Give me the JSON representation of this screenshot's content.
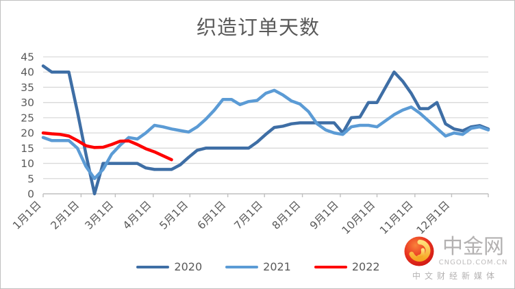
{
  "title": "织造订单天数",
  "chart_data": {
    "type": "line",
    "title": "织造订单天数",
    "grid": "horizontal",
    "legend_position": "bottom",
    "x_unit": "weekly points, Jan 1 through Dec 31",
    "x_tick_labels": [
      "1月1日",
      "2月1日",
      "3月1日",
      "4月1日",
      "5月1日",
      "6月1日",
      "7月1日",
      "8月1日",
      "9月1日",
      "10月1日",
      "11月1日",
      "12月1日"
    ],
    "x_month_tick_day_offsets": [
      0,
      31,
      59,
      90,
      120,
      151,
      181,
      212,
      243,
      273,
      304,
      334
    ],
    "x_total_days": 364,
    "y_ticks": [
      0,
      5,
      10,
      15,
      20,
      25,
      30,
      35,
      40,
      45
    ],
    "ylim": [
      0,
      45
    ],
    "series": [
      {
        "name": "2020",
        "color": "#3e6ea5",
        "values": [
          42,
          40,
          40,
          40,
          27,
          13,
          0,
          10,
          10,
          10,
          10,
          10,
          8.5,
          8,
          8,
          8,
          9.5,
          12,
          14.3,
          15,
          15,
          15,
          15,
          15,
          15,
          17,
          19.5,
          21.8,
          22.2,
          23,
          23.3,
          23.3,
          23.3,
          23.3,
          23.3,
          20,
          25,
          25.2,
          30,
          30,
          35,
          40,
          37,
          33,
          28,
          28,
          30,
          23,
          21.3,
          20.7,
          22,
          22.4,
          21.3
        ]
      },
      {
        "name": "2021",
        "color": "#5b9bd5",
        "values": [
          18.5,
          17.5,
          17.5,
          17.5,
          15,
          9,
          5,
          8,
          13,
          16,
          18.5,
          18,
          20,
          22.5,
          22,
          21.3,
          20.8,
          20.3,
          22,
          24.5,
          27.5,
          31,
          31,
          29.3,
          30.3,
          30.7,
          33,
          34,
          32.5,
          30.5,
          29.5,
          27,
          23,
          21,
          20,
          19.5,
          22,
          22.5,
          22.5,
          22,
          24,
          26,
          27.5,
          28.5,
          26.5,
          24,
          21.5,
          19,
          20,
          19.5,
          21.5,
          22,
          21
        ]
      },
      {
        "name": "2022",
        "color": "#fe0000",
        "values": [
          20,
          19.7,
          19.5,
          19,
          17.5,
          15.8,
          15.2,
          15.3,
          16.2,
          17.3,
          17.4,
          16.2,
          14.8,
          13.8,
          12.5,
          11.2
        ]
      }
    ],
    "axis_color": "#bfbfbf",
    "gridline_color": "#d9d9d9",
    "tick_label_color": "#595959"
  },
  "watermark": {
    "brand": "中金网",
    "domain": "CNGOLD.COM.CN",
    "tagline": "中文财经新媒体"
  }
}
